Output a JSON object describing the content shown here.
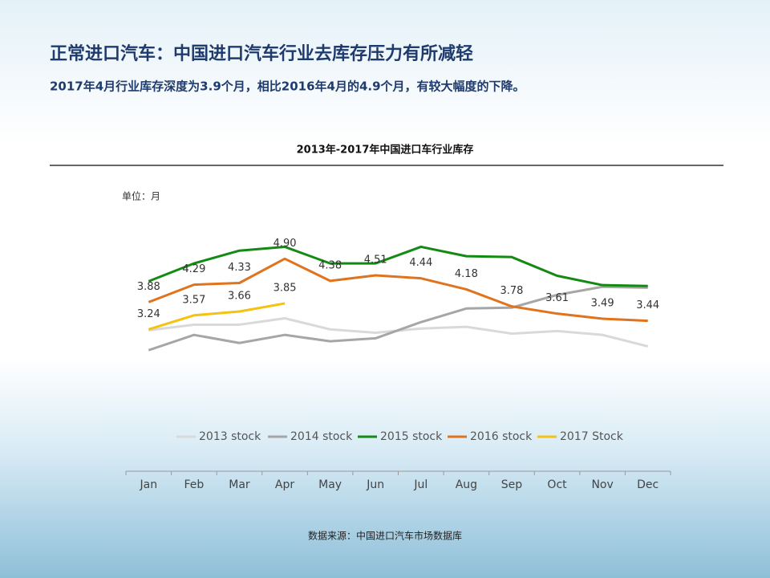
{
  "title": "正常进口汽车：中国进口汽车行业去库存压力有所减轻",
  "subtitle": "2017年4月行业库存深度为3.9个月，相比2016年4月的4.9个月，有较大幅度的下降。",
  "source": "数据来源：中国进口汽车市场数据库",
  "chart_data": {
    "type": "line",
    "title": "2013年-2017年中国进口车行业库存",
    "unit_label": "单位：月",
    "categories": [
      "Jan",
      "Feb",
      "Mar",
      "Apr",
      "May",
      "Jun",
      "Jul",
      "Aug",
      "Sep",
      "Oct",
      "Nov",
      "Dec"
    ],
    "ylim": [
      2,
      6
    ],
    "legend": "bottom",
    "series": [
      {
        "name": "2013 stock",
        "color": "#d9d9d9",
        "values": [
          3.22,
          3.35,
          3.35,
          3.5,
          3.24,
          3.16,
          3.26,
          3.3,
          3.14,
          3.2,
          3.11,
          2.84
        ]
      },
      {
        "name": "2014 stock",
        "color": "#a6a6a6",
        "values": [
          2.75,
          3.11,
          2.92,
          3.11,
          2.96,
          3.03,
          3.41,
          3.73,
          3.75,
          4.05,
          4.24,
          4.22
        ]
      },
      {
        "name": "2015 stock",
        "color": "#138a13",
        "values": [
          4.37,
          4.79,
          5.09,
          5.18,
          4.79,
          4.79,
          5.18,
          4.96,
          4.94,
          4.5,
          4.28,
          4.26
        ]
      },
      {
        "name": "2016 stock",
        "color": "#e0731e",
        "values": [
          3.88,
          4.29,
          4.33,
          4.9,
          4.38,
          4.51,
          4.44,
          4.18,
          3.78,
          3.61,
          3.49,
          3.44
        ],
        "value_labels": [
          "3.88",
          "4.29",
          "4.33",
          "4.90",
          "4.38",
          "4.51",
          "4.44",
          "4.18",
          "3.78",
          "3.61",
          "3.49",
          "3.44"
        ]
      },
      {
        "name": "2017 Stock",
        "color": "#f5c211",
        "values": [
          3.24,
          3.57,
          3.66,
          3.85,
          null,
          null,
          null,
          null,
          null,
          null,
          null,
          null
        ],
        "value_labels": [
          "3.24",
          "3.57",
          "3.66",
          "3.85",
          null,
          null,
          null,
          null,
          null,
          null,
          null,
          null
        ]
      }
    ]
  }
}
